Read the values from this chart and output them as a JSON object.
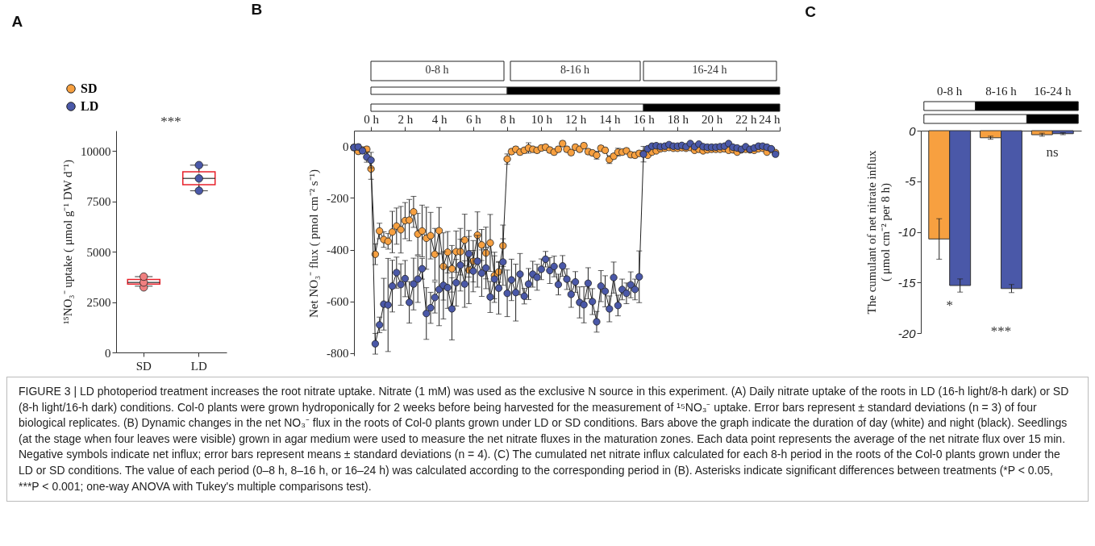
{
  "chart_data": [
    {
      "type": "box",
      "title": "A",
      "ylabel": "¹⁵NO₃⁻ uptake ( μmol g⁻¹ DW d⁻¹)",
      "categories": [
        "SD",
        "LD"
      ],
      "ylim": [
        0,
        11000
      ],
      "yticks": [
        0,
        2500,
        5000,
        7500,
        10000
      ],
      "marker": "circle",
      "series": [
        {
          "type": "box",
          "color": "#e8202a",
          "boxes": [
            {
              "low": 3290,
              "q1": 3390,
              "median": 3470,
              "q3": 3620,
              "high": 3760
            },
            {
              "low": 8020,
              "q1": 8320,
              "median": 8630,
              "q3": 8960,
              "high": 9290
            }
          ]
        },
        {
          "type": "scatter",
          "color": "#f08080",
          "x": [
            "SD",
            "SD",
            "SD"
          ],
          "values": [
            3230,
            3470,
            3760
          ]
        },
        {
          "type": "scatter",
          "color": "#4a58a8",
          "x": [
            "LD",
            "LD",
            "LD"
          ],
          "values": [
            8020,
            8630,
            9290
          ]
        }
      ],
      "annotations": [
        "***",
        "FIGURE 3 | LD photoperiod treatment increases the root nitrate uptake. Nitrate (1 mM) was used as the exclusive N source in this experiment. (A) Daily nitrate uptake of the roots in LD (16-h light/8-h dark) or SD (8-h light/16-h dark) conditions. Col-0 plants were grown hydroponically for 2 weeks before being harvested for the measurement of ¹⁵NO₃⁻ uptake. Error bars represent ± standard deviations (n = 3) of four biological replicates. (B) Dynamic changes in the net NO₃⁻ flux in the roots of Col-0 plants grown under LD or SD conditions. Bars above the graph indicate the duration of day (white) and night (black). Seedlings (at the stage when four leaves were visible) grown in agar medium were used to measure the net nitrate fluxes in the maturation zones. Each data point represents the average of the net nitrate flux over 15 min. Negative symbols indicate net influx; error bars represent means ± standard deviations (n = 4). (C) The cumulated net nitrate influx calculated for each 8-h period in the roots of the Col-0 plants grown under the LD or SD conditions. The value of each period (0–8 h, 8–16 h, or 16–24 h) was calculated according to the corresponding period in (B). Asterisks indicate significant differences between treatments (*P < 0.05, ***P < 0.001; one-way ANOVA with Tukey's multiple comparisons test)."
      ]
    },
    {
      "type": "line",
      "title": "B",
      "ylabel": "Net NO₃⁻ flux ( pmol cm⁻² s⁻¹)",
      "marker": "circle",
      "legend": "top left",
      "xlim": [
        -1,
        24
      ],
      "ylim": [
        -810,
        60
      ],
      "yticks": [
        0,
        -200,
        -400,
        -600,
        -800
      ],
      "xticks": [
        {
          "value": 0,
          "label": "0 h"
        },
        {
          "value": 2,
          "label": "2 h"
        },
        {
          "value": 4,
          "label": "4 h"
        },
        {
          "value": 6,
          "label": "6 h"
        },
        {
          "value": 8,
          "label": "8 h"
        },
        {
          "value": 10,
          "label": "10 h"
        },
        {
          "value": 12,
          "label": "12 h"
        },
        {
          "value": 14,
          "label": "14 h"
        },
        {
          "value": 16,
          "label": "16 h"
        },
        {
          "value": 18,
          "label": "18 h"
        },
        {
          "value": 20,
          "label": "20 h"
        },
        {
          "value": 22,
          "label": "22 h"
        },
        {
          "value": 24,
          "label": "24 h"
        }
      ],
      "annotations": [
        "0-8 h",
        "8-16 h",
        "16-24 h"
      ],
      "x": [
        -1,
        -0.75,
        -0.5,
        -0.25,
        0,
        0.25,
        0.5,
        0.75,
        1,
        1.25,
        1.5,
        1.75,
        2,
        2.25,
        2.5,
        2.75,
        3,
        3.25,
        3.5,
        3.75,
        4,
        4.25,
        4.5,
        4.75,
        5,
        5.25,
        5.5,
        5.75,
        6,
        6.25,
        6.5,
        6.75,
        7,
        7.25,
        7.5,
        7.75,
        8,
        8.25,
        8.5,
        8.75,
        9,
        9.25,
        9.5,
        9.75,
        10,
        10.25,
        10.5,
        10.75,
        11,
        11.25,
        11.5,
        11.75,
        12,
        12.25,
        12.5,
        12.75,
        13,
        13.25,
        13.5,
        13.75,
        14,
        14.25,
        14.5,
        14.75,
        15,
        15.25,
        15.5,
        15.75,
        16,
        16.25,
        16.5,
        16.75,
        17,
        17.25,
        17.5,
        17.75,
        18,
        18.25,
        18.5,
        18.75,
        19,
        19.25,
        19.5,
        19.75,
        20,
        20.25,
        20.5,
        20.75,
        21,
        21.25,
        21.5,
        21.75,
        22,
        22.25,
        22.5,
        22.75,
        23,
        23.25,
        23.5,
        23.75
      ],
      "series": [
        {
          "name": "SD",
          "color": "#f7a040",
          "values": [
            -5,
            -20,
            -15,
            -12,
            -88,
            -418,
            -328,
            -361,
            -368,
            -332,
            -309,
            -323,
            -288,
            -286,
            -254,
            -340,
            -328,
            -356,
            -346,
            -418,
            -327,
            -465,
            -410,
            -474,
            -408,
            -408,
            -363,
            -479,
            -445,
            -344,
            -382,
            -413,
            -374,
            -500,
            -486,
            -385,
            -50,
            -21,
            -12,
            -23,
            -16,
            -7,
            -12,
            -16,
            -7,
            -4,
            -15,
            -23,
            -12,
            10,
            -12,
            -25,
            -4,
            -12,
            2,
            -21,
            -26,
            -35,
            -8,
            -16,
            -52,
            -39,
            -23,
            -23,
            -18,
            -33,
            -35,
            -28,
            -28,
            -35,
            -23,
            -18,
            -10,
            -8,
            -5,
            -8,
            -8,
            -6,
            -8,
            -5,
            -16,
            -12,
            -18,
            -14,
            -12,
            -12,
            -12,
            -10,
            -16,
            -14,
            -23,
            -14,
            -12,
            -14,
            -16,
            -10,
            -8,
            -23,
            -12,
            -25
          ],
          "errors": [
            10,
            10,
            10,
            10,
            40,
            40,
            30,
            30,
            30,
            80,
            70,
            90,
            70,
            80,
            60,
            80,
            100,
            120,
            90,
            100,
            90,
            130,
            80,
            90,
            80,
            90,
            100,
            130,
            80,
            90,
            60,
            100,
            110,
            90,
            40,
            80,
            20,
            10,
            10,
            10,
            10,
            20,
            10,
            10,
            10,
            10,
            10,
            10,
            10,
            10,
            10,
            10,
            10,
            10,
            10,
            10,
            10,
            15,
            10,
            10,
            15,
            10,
            15,
            10,
            10,
            10,
            10,
            10,
            10,
            null,
            null,
            null,
            null,
            null,
            null,
            null,
            null,
            null,
            null,
            null,
            null,
            null,
            null,
            null,
            null,
            null,
            null,
            null,
            null,
            null,
            null,
            null,
            null,
            null,
            null,
            null,
            null,
            null,
            null,
            8
          ]
        },
        {
          "name": "LD",
          "color": "#4a58a8",
          "values": [
            -5,
            -3,
            -18,
            -42,
            -54,
            -764,
            -691,
            -611,
            -614,
            -541,
            -489,
            -535,
            -512,
            -604,
            -533,
            -514,
            -474,
            -647,
            -625,
            -585,
            -554,
            -538,
            -547,
            -629,
            -528,
            -460,
            -533,
            -416,
            -483,
            -445,
            -491,
            -471,
            -583,
            -514,
            -549,
            -448,
            -569,
            -517,
            -566,
            -495,
            -580,
            -533,
            -495,
            -507,
            -476,
            -437,
            -481,
            -465,
            -535,
            -463,
            -514,
            -573,
            -525,
            -604,
            -613,
            -530,
            -601,
            -679,
            -541,
            -561,
            -629,
            -508,
            -616,
            -554,
            -569,
            -536,
            -554,
            -505,
            -31,
            -10,
            0,
            2,
            -2,
            0,
            6,
            0,
            0,
            3,
            -2,
            10,
            -2,
            8,
            -2,
            -4,
            -4,
            -4,
            -2,
            0,
            10,
            -4,
            -7,
            -12,
            -2,
            -12,
            -7,
            0,
            0,
            -4,
            -10,
            -31
          ],
          "errors": [
            10,
            10,
            10,
            20,
            30,
            40,
            30,
            100,
            180,
            100,
            60,
            80,
            70,
            80,
            100,
            90,
            40,
            100,
            60,
            60,
            140,
            130,
            80,
            120,
            90,
            100,
            90,
            90,
            80,
            100,
            90,
            80,
            60,
            90,
            100,
            90,
            90,
            80,
            110,
            80,
            30,
            60,
            50,
            50,
            40,
            30,
            50,
            40,
            40,
            40,
            40,
            50,
            40,
            60,
            70,
            60,
            50,
            40,
            60,
            60,
            50,
            60,
            40,
            40,
            40,
            50,
            40,
            100,
            30,
            null,
            null,
            null,
            null,
            null,
            null,
            null,
            null,
            null,
            null,
            null,
            null,
            null,
            null,
            null,
            null,
            null,
            null,
            null,
            null,
            null,
            null,
            null,
            null,
            null,
            null,
            null,
            null,
            null,
            null,
            8
          ]
        }
      ]
    },
    {
      "type": "bar",
      "title": "C",
      "ylabel": "The cumulant of net nitrate influx\n( μmol cm⁻²  per 8 h)",
      "legend": "right",
      "categories": [
        "0-8 h",
        "8-16 h",
        "16-24 h"
      ],
      "ylim": [
        -20,
        0
      ],
      "yticks": [
        0,
        -5,
        -10,
        -15,
        -20
      ],
      "series": [
        {
          "name": "SD",
          "color": "#f7a040",
          "values": [
            -10.7,
            -0.7,
            -0.4
          ],
          "errors": [
            2.0,
            0.15,
            0.15
          ]
        },
        {
          "name": "LD",
          "color": "#4a58a8",
          "values": [
            -15.3,
            -15.6,
            -0.3
          ],
          "errors": [
            0.65,
            0.4,
            0.1
          ]
        }
      ],
      "annotations": [
        "*",
        "***",
        "ns"
      ]
    }
  ]
}
